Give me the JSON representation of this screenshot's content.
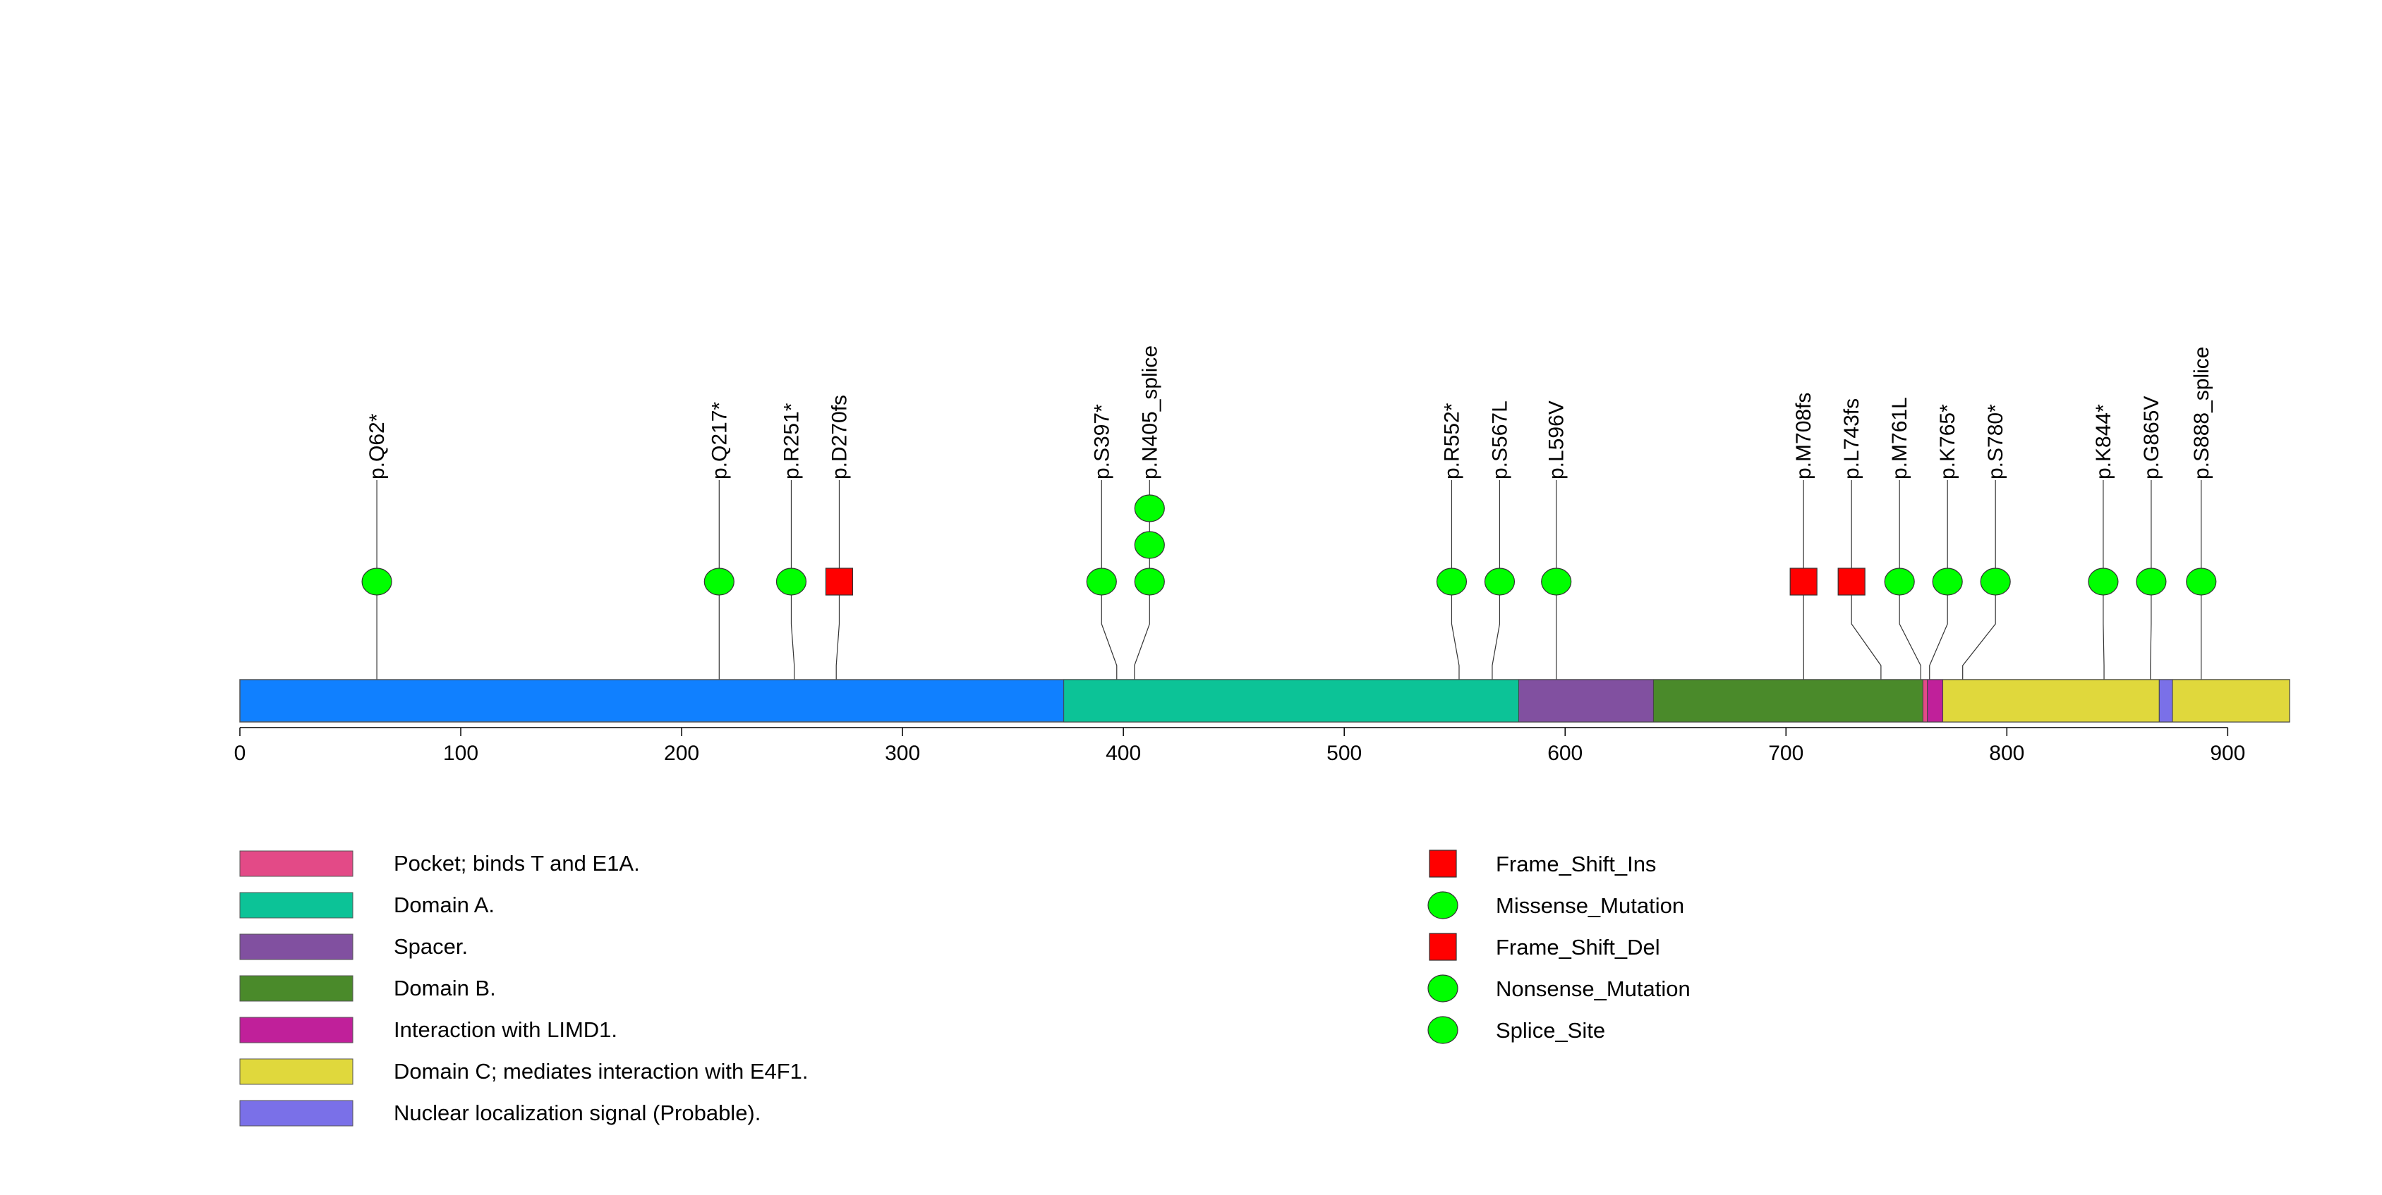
{
  "chart_data": {
    "type": "lollipop",
    "title": "",
    "xlabel": "",
    "ylabel": "",
    "xlim": [
      0,
      928
    ],
    "x_ticks": [
      0,
      100,
      200,
      300,
      400,
      500,
      600,
      700,
      800,
      900
    ],
    "protein_length": 928,
    "backbone_color": "#1080FF",
    "domains": [
      {
        "label": "Domain A.",
        "start": 373,
        "end": 579,
        "color": "#0CC397"
      },
      {
        "label": "Spacer.",
        "start": 579,
        "end": 640,
        "color": "#8150A0"
      },
      {
        "label": "Domain B.",
        "start": 640,
        "end": 762,
        "color": "#4A8A2A"
      },
      {
        "label": "Pocket; binds T and E1A.",
        "start": 762,
        "end": 764,
        "color": "#E34A87"
      },
      {
        "label": "Interaction with LIMD1.",
        "start": 764,
        "end": 771,
        "color": "#C0209A"
      },
      {
        "label": "Domain C; mediates interaction with E4F1.",
        "start": 771,
        "end": 869,
        "color": "#E0D83C"
      },
      {
        "label": "Nuclear localization signal (Probable).",
        "start": 869,
        "end": 875,
        "color": "#7A70E8"
      },
      {
        "label": "Domain C; mediates interaction with E4F1.",
        "start": 875,
        "end": 928,
        "color": "#E0D83C"
      }
    ],
    "mutations": [
      {
        "label": "p.Q62*",
        "position": 62,
        "count": 1,
        "shape": "circle",
        "type": "Nonsense_Mutation"
      },
      {
        "label": "p.Q217*",
        "position": 217,
        "count": 1,
        "shape": "circle",
        "type": "Nonsense_Mutation"
      },
      {
        "label": "p.R251*",
        "position": 251,
        "count": 1,
        "shape": "circle",
        "type": "Nonsense_Mutation"
      },
      {
        "label": "p.D270fs",
        "position": 270,
        "count": 1,
        "shape": "square",
        "type": "Frame_Shift_Del"
      },
      {
        "label": "p.S397*",
        "position": 397,
        "count": 1,
        "shape": "circle",
        "type": "Nonsense_Mutation"
      },
      {
        "label": "p.N405_splice",
        "position": 405,
        "count": 3,
        "shape": "circle",
        "type": "Splice_Site"
      },
      {
        "label": "p.R552*",
        "position": 552,
        "count": 1,
        "shape": "circle",
        "type": "Nonsense_Mutation"
      },
      {
        "label": "p.S567L",
        "position": 567,
        "count": 1,
        "shape": "circle",
        "type": "Missense_Mutation"
      },
      {
        "label": "p.L596V",
        "position": 596,
        "count": 1,
        "shape": "circle",
        "type": "Missense_Mutation"
      },
      {
        "label": "p.M708fs",
        "position": 708,
        "count": 1,
        "shape": "square",
        "type": "Frame_Shift_Ins"
      },
      {
        "label": "p.L743fs",
        "position": 743,
        "count": 1,
        "shape": "square",
        "type": "Frame_Shift_Del"
      },
      {
        "label": "p.M761L",
        "position": 761,
        "count": 1,
        "shape": "circle",
        "type": "Missense_Mutation"
      },
      {
        "label": "p.K765*",
        "position": 765,
        "count": 1,
        "shape": "circle",
        "type": "Nonsense_Mutation"
      },
      {
        "label": "p.S780*",
        "position": 780,
        "count": 1,
        "shape": "circle",
        "type": "Nonsense_Mutation"
      },
      {
        "label": "p.K844*",
        "position": 844,
        "count": 1,
        "shape": "circle",
        "type": "Nonsense_Mutation"
      },
      {
        "label": "p.G865V",
        "position": 865,
        "count": 1,
        "shape": "circle",
        "type": "Missense_Mutation"
      },
      {
        "label": "p.S888_splice",
        "position": 888,
        "count": 1,
        "shape": "circle",
        "type": "Splice_Site"
      }
    ],
    "domain_legend": [
      {
        "label": "Pocket; binds T and E1A.",
        "color": "#E34A87"
      },
      {
        "label": "Domain A.",
        "color": "#0CC397"
      },
      {
        "label": "Spacer.",
        "color": "#8150A0"
      },
      {
        "label": "Domain B.",
        "color": "#4A8A2A"
      },
      {
        "label": "Interaction with LIMD1.",
        "color": "#C0209A"
      },
      {
        "label": "Domain C; mediates interaction with E4F1.",
        "color": "#E0D83C"
      },
      {
        "label": "Nuclear localization signal (Probable).",
        "color": "#7A70E8"
      }
    ],
    "mutation_legend": [
      {
        "label": "Frame_Shift_Ins",
        "shape": "square",
        "color": "#FF0000"
      },
      {
        "label": "Missense_Mutation",
        "shape": "circle",
        "color": "#00FF00"
      },
      {
        "label": "Frame_Shift_Del",
        "shape": "square",
        "color": "#FF0000"
      },
      {
        "label": "Nonsense_Mutation",
        "shape": "circle",
        "color": "#00FF00"
      },
      {
        "label": "Splice_Site",
        "shape": "circle",
        "color": "#00FF00"
      }
    ],
    "colors": {
      "circle": "#00FF00",
      "square": "#FF0000",
      "stroke": "#333333"
    }
  }
}
